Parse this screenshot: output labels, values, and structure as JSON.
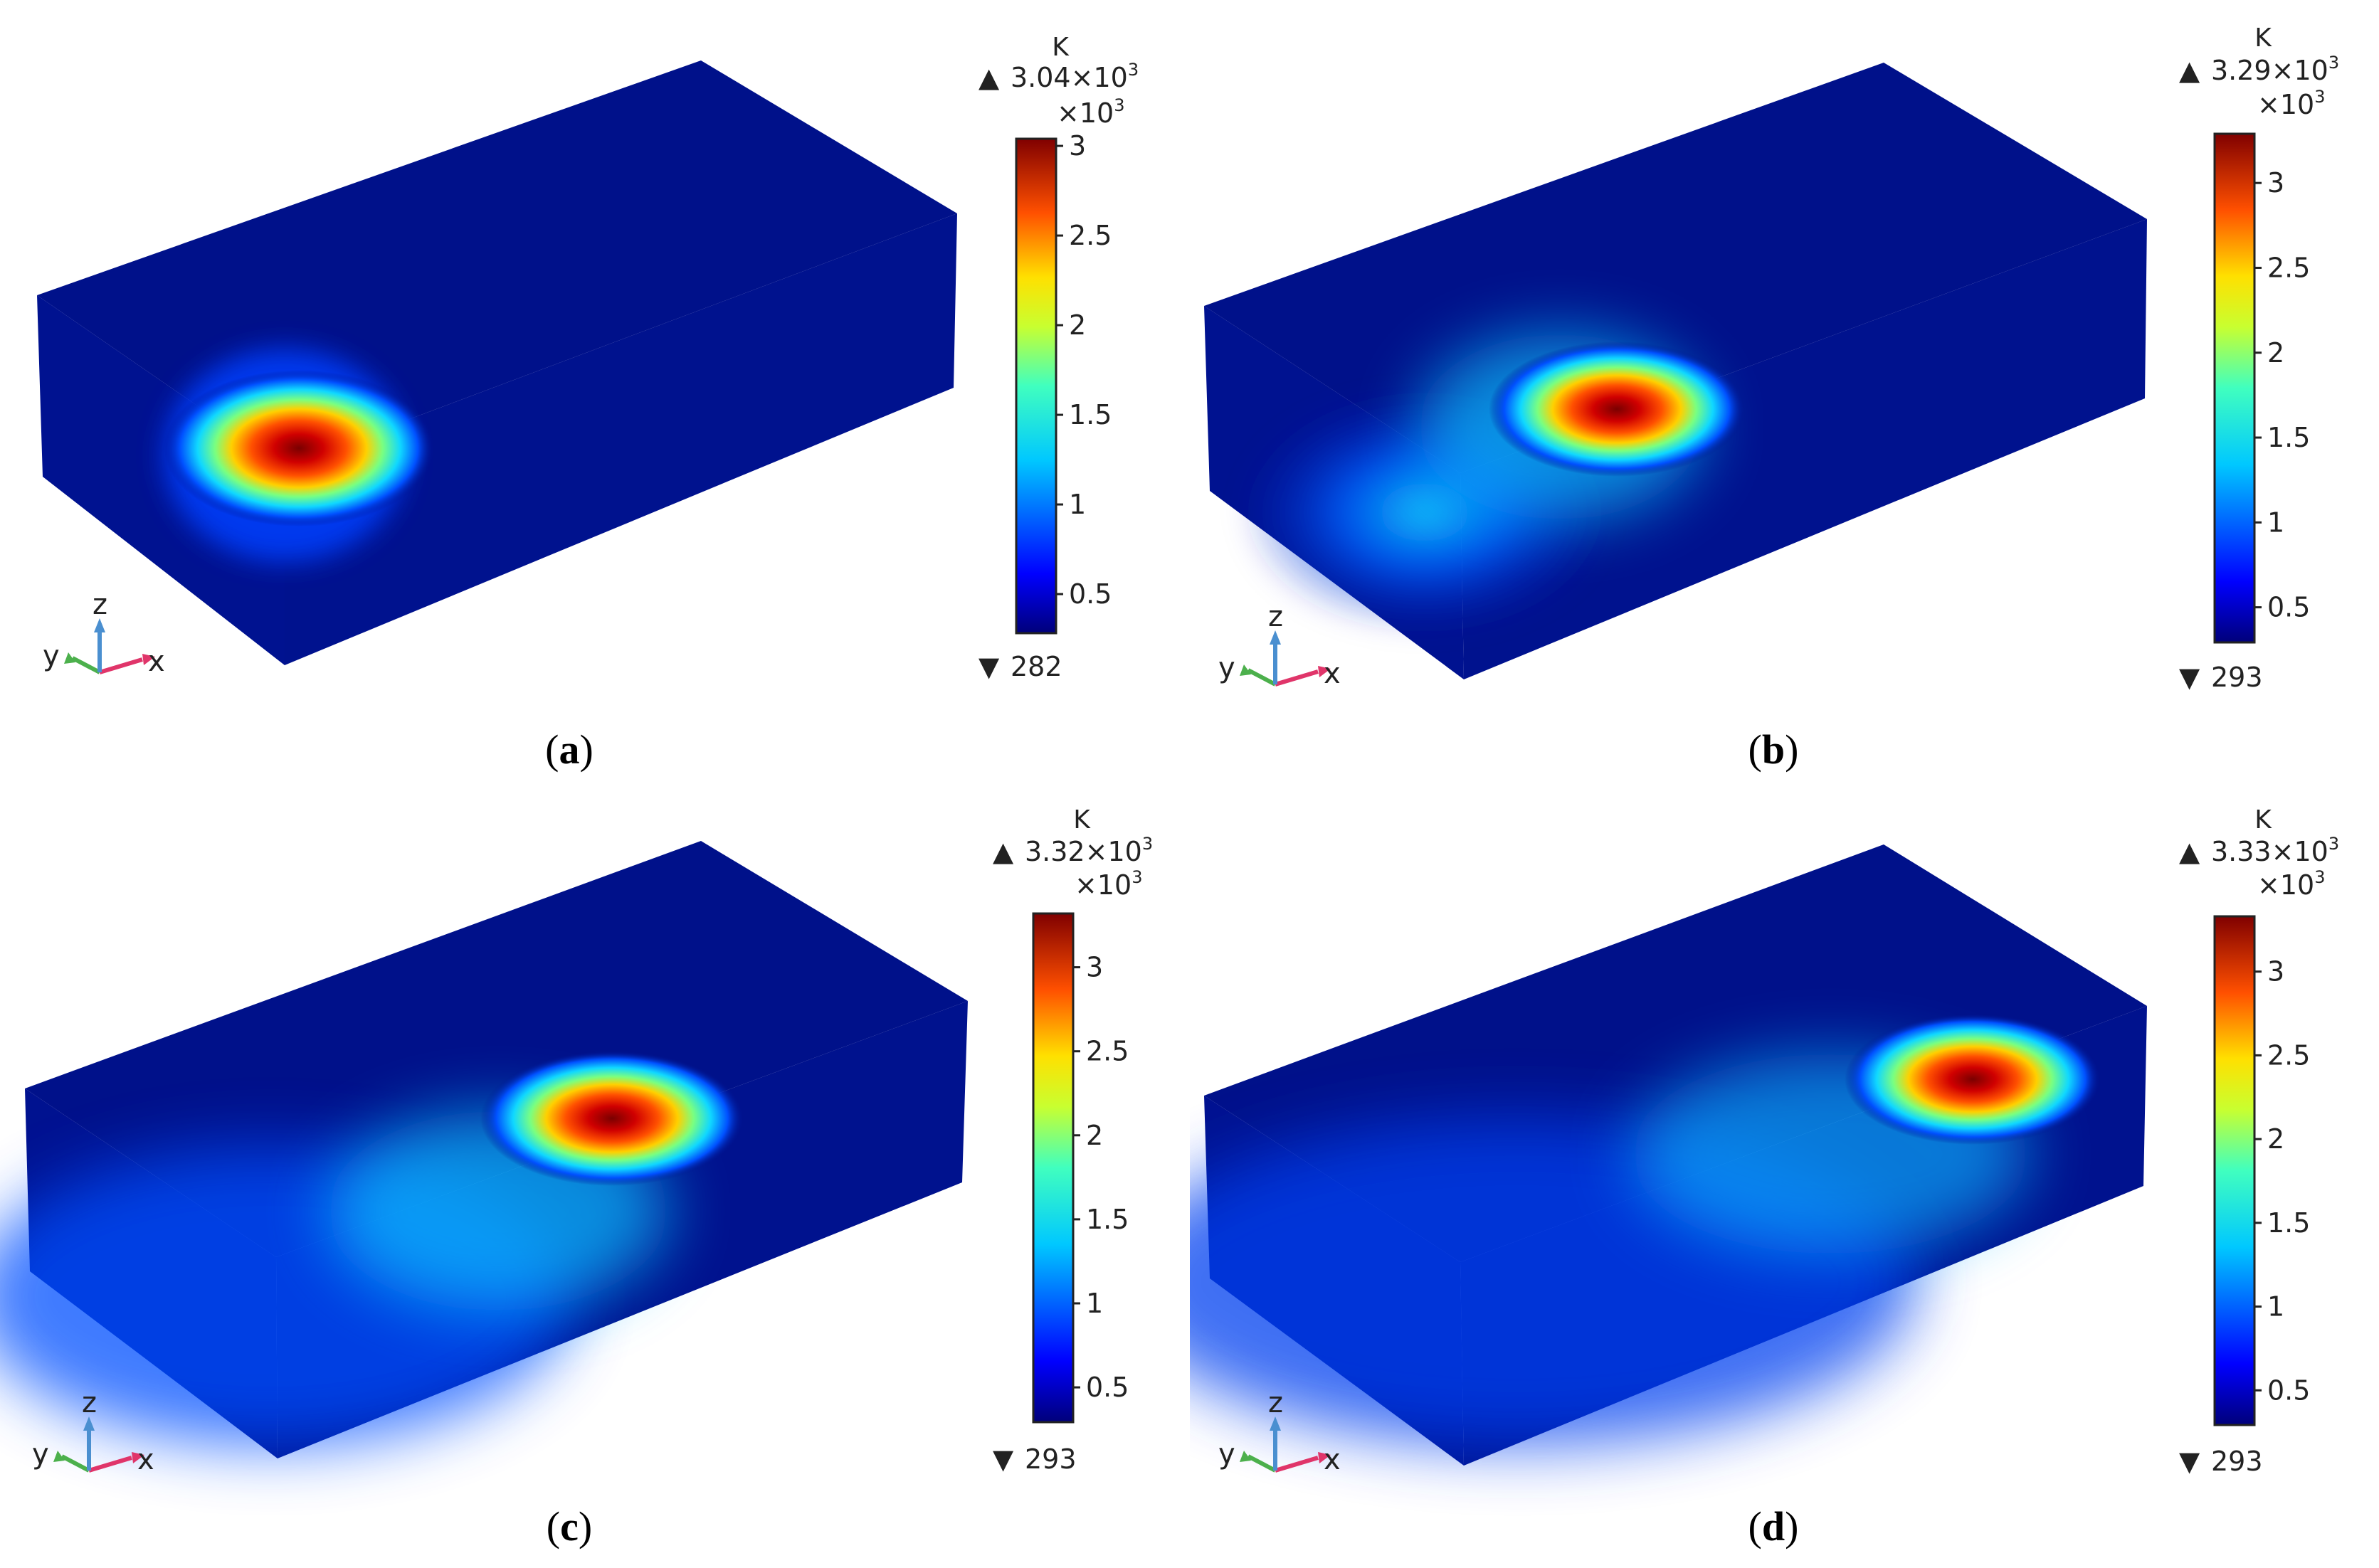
{
  "panels": [
    {
      "id": "a",
      "caption": "a",
      "colorbar": {
        "unit": "K",
        "max_label": "3.04×10",
        "max_exp": "3",
        "multiplier": "×10",
        "multiplier_exp": "3",
        "min_label": "282",
        "ticks": [
          "3",
          "2.5",
          "2",
          "1.5",
          "1",
          "0.5"
        ],
        "tick_values": [
          3,
          2.5,
          2,
          1.5,
          1,
          0.5
        ],
        "range": [
          0.282,
          3.04
        ]
      },
      "axes": {
        "x": "x",
        "y": "y",
        "z": "z"
      }
    },
    {
      "id": "b",
      "caption": "b",
      "colorbar": {
        "unit": "K",
        "max_label": "3.29×10",
        "max_exp": "3",
        "multiplier": "×10",
        "multiplier_exp": "3",
        "min_label": "293",
        "ticks": [
          "3",
          "2.5",
          "2",
          "1.5",
          "1",
          "0.5"
        ],
        "tick_values": [
          3,
          2.5,
          2,
          1.5,
          1,
          0.5
        ],
        "range": [
          0.293,
          3.29
        ]
      },
      "axes": {
        "x": "x",
        "y": "y",
        "z": "z"
      }
    },
    {
      "id": "c",
      "caption": "c",
      "colorbar": {
        "unit": "K",
        "max_label": "3.32×10",
        "max_exp": "3",
        "multiplier": "×10",
        "multiplier_exp": "3",
        "min_label": "293",
        "ticks": [
          "3",
          "2.5",
          "2",
          "1.5",
          "1",
          "0.5"
        ],
        "tick_values": [
          3,
          2.5,
          2,
          1.5,
          1,
          0.5
        ],
        "range": [
          0.293,
          3.32
        ]
      },
      "axes": {
        "x": "x",
        "y": "y",
        "z": "z"
      }
    },
    {
      "id": "d",
      "caption": "d",
      "colorbar": {
        "unit": "K",
        "max_label": "3.33×10",
        "max_exp": "3",
        "multiplier": "×10",
        "multiplier_exp": "3",
        "min_label": "293",
        "ticks": [
          "3",
          "2.5",
          "2",
          "1.5",
          "1",
          "0.5"
        ],
        "tick_values": [
          3,
          2.5,
          2,
          1.5,
          1,
          0.5
        ],
        "range": [
          0.293,
          3.33
        ]
      },
      "axes": {
        "x": "x",
        "y": "y",
        "z": "z"
      }
    }
  ],
  "colors": {
    "background_block": "#00118a",
    "hot": "#7a0000",
    "axis_x": "#e0356a",
    "axis_y": "#4cb04c",
    "axis_z": "#4a8fd0"
  }
}
